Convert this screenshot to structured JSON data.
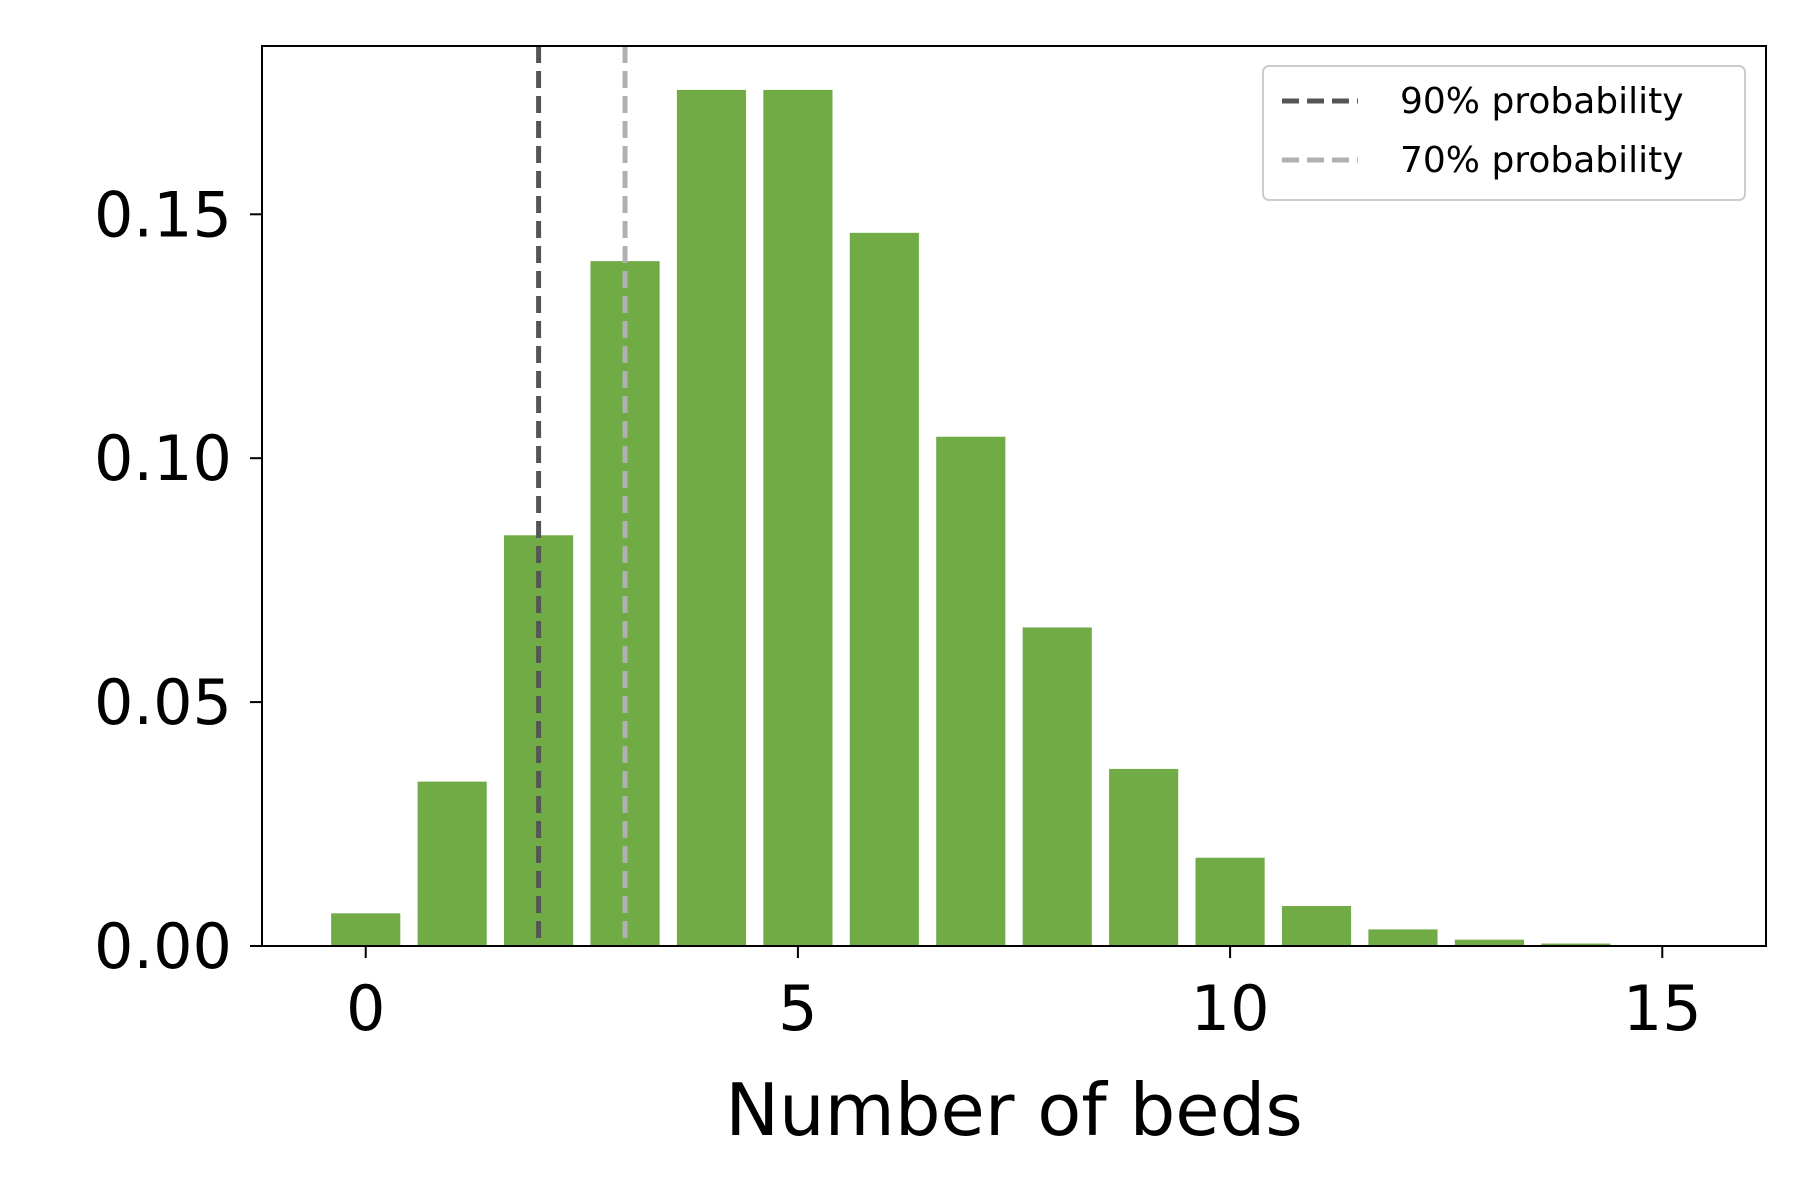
{
  "chart_data": {
    "type": "bar",
    "title": "",
    "xlabel": "Number of beds",
    "ylabel": "",
    "x": [
      0,
      1,
      2,
      3,
      4,
      5,
      6,
      7,
      8,
      9,
      10,
      11,
      12,
      13,
      14,
      15
    ],
    "values": [
      0.0067,
      0.0337,
      0.0842,
      0.1404,
      0.1755,
      0.1755,
      0.1462,
      0.1044,
      0.0653,
      0.0363,
      0.0181,
      0.0082,
      0.0034,
      0.0013,
      0.0005,
      0.0002
    ],
    "xlim": [
      -1.2,
      16.2
    ],
    "ylim": [
      0,
      0.1845
    ],
    "xticks": [
      0,
      5,
      10,
      15
    ],
    "xtick_labels": [
      "0",
      "5",
      "10",
      "15"
    ],
    "yticks": [
      0.0,
      0.05,
      0.1,
      0.15
    ],
    "ytick_labels": [
      "0.00",
      "0.05",
      "0.10",
      "0.15"
    ],
    "grid": false,
    "bar_color": "#70ab46",
    "reference_lines": [
      {
        "name": "90% probability",
        "x": 2,
        "color": "#555555",
        "style": "dashed"
      },
      {
        "name": "70% probability",
        "x": 3,
        "color": "#b0b0b0",
        "style": "dashed"
      }
    ],
    "legend": {
      "position": "top-right",
      "entries": [
        "90% probability",
        "70% probability"
      ]
    }
  }
}
